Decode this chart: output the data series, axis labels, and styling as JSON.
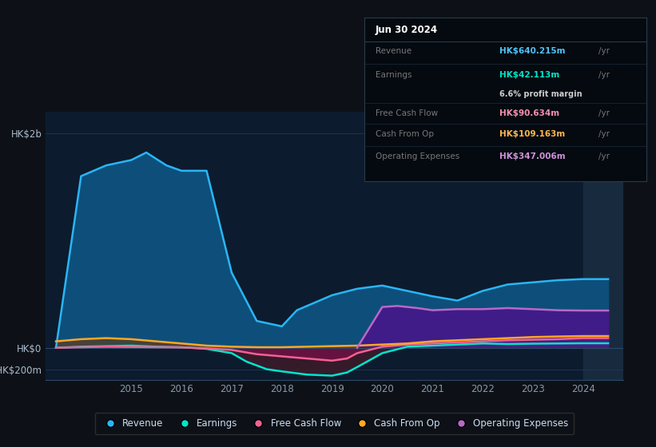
{
  "bg_color": "#0d1117",
  "plot_bg_color": "#0d1b2e",
  "grid_color": "#1e3a5a",
  "ylabel_text": "HK$2b",
  "ylabel_neg": "-HK$200m",
  "ylabel_zero": "HK$0",
  "x_ticks": [
    2015,
    2016,
    2017,
    2018,
    2019,
    2020,
    2021,
    2022,
    2023,
    2024
  ],
  "ylim": [
    -300,
    2200
  ],
  "highlight_x_start": 2024.0,
  "tooltip": {
    "date": "Jun 30 2024",
    "revenue_label": "Revenue",
    "revenue_value": "HK$640.215m",
    "revenue_color": "#4fc3f7",
    "earnings_label": "Earnings",
    "earnings_value": "HK$42.113m",
    "earnings_color": "#00e5cc",
    "profit_margin": "6.6% profit margin",
    "fcf_label": "Free Cash Flow",
    "fcf_value": "HK$90.634m",
    "fcf_color": "#f48fb1",
    "cashop_label": "Cash From Op",
    "cashop_value": "HK$109.163m",
    "cashop_color": "#ffb74d",
    "opex_label": "Operating Expenses",
    "opex_value": "HK$347.006m",
    "opex_color": "#ce93d8"
  },
  "revenue": {
    "color": "#29b6f6",
    "fill_color": "#0d4f7a",
    "x": [
      2013.5,
      2014.0,
      2014.5,
      2015.0,
      2015.3,
      2015.7,
      2016.0,
      2016.5,
      2017.0,
      2017.5,
      2018.0,
      2018.3,
      2018.7,
      2019.0,
      2019.5,
      2020.0,
      2020.5,
      2021.0,
      2021.5,
      2022.0,
      2022.5,
      2023.0,
      2023.5,
      2024.0,
      2024.5
    ],
    "y": [
      0,
      1600,
      1700,
      1750,
      1820,
      1700,
      1650,
      1650,
      700,
      250,
      200,
      350,
      430,
      490,
      550,
      580,
      530,
      480,
      440,
      530,
      590,
      610,
      630,
      640,
      640
    ]
  },
  "earnings": {
    "color": "#00e5cc",
    "fill_color": "#004d40",
    "x": [
      2013.5,
      2014.0,
      2014.5,
      2015.0,
      2015.5,
      2016.0,
      2016.5,
      2017.0,
      2017.3,
      2017.7,
      2018.0,
      2018.5,
      2019.0,
      2019.3,
      2019.5,
      2020.0,
      2020.5,
      2021.0,
      2021.5,
      2022.0,
      2022.5,
      2023.0,
      2023.5,
      2024.0,
      2024.5
    ],
    "y": [
      0,
      10,
      15,
      20,
      10,
      5,
      -10,
      -50,
      -130,
      -200,
      -220,
      -250,
      -260,
      -230,
      -180,
      -50,
      10,
      20,
      30,
      40,
      35,
      38,
      40,
      42,
      42
    ]
  },
  "fcf": {
    "color": "#f06292",
    "fill_color": "#880e4f",
    "x": [
      2013.5,
      2014.0,
      2014.5,
      2015.0,
      2015.5,
      2016.0,
      2016.5,
      2017.0,
      2017.5,
      2018.0,
      2018.5,
      2019.0,
      2019.3,
      2019.5,
      2020.0,
      2020.5,
      2021.0,
      2021.5,
      2022.0,
      2022.5,
      2023.0,
      2023.5,
      2024.0,
      2024.5
    ],
    "y": [
      0,
      5,
      10,
      8,
      5,
      3,
      -5,
      -20,
      -60,
      -80,
      -100,
      -120,
      -100,
      -50,
      10,
      30,
      40,
      50,
      60,
      70,
      75,
      80,
      90,
      90
    ]
  },
  "cashop": {
    "color": "#ffa726",
    "fill_color": "#7a3800",
    "x": [
      2013.5,
      2014.0,
      2014.5,
      2015.0,
      2015.5,
      2016.0,
      2016.5,
      2017.0,
      2017.5,
      2018.0,
      2018.5,
      2019.0,
      2019.5,
      2020.0,
      2020.5,
      2021.0,
      2021.5,
      2022.0,
      2022.5,
      2023.0,
      2023.5,
      2024.0,
      2024.5
    ],
    "y": [
      60,
      80,
      90,
      80,
      60,
      40,
      20,
      10,
      5,
      5,
      10,
      15,
      20,
      30,
      40,
      60,
      70,
      80,
      90,
      100,
      105,
      109,
      109
    ]
  },
  "opex": {
    "color": "#ba68c8",
    "fill_color": "#4a148c",
    "x": [
      2019.5,
      2020.0,
      2020.3,
      2020.7,
      2021.0,
      2021.5,
      2022.0,
      2022.5,
      2023.0,
      2023.5,
      2024.0,
      2024.5
    ],
    "y": [
      0,
      380,
      390,
      370,
      350,
      360,
      360,
      370,
      360,
      350,
      347,
      347
    ]
  },
  "legend": [
    {
      "label": "Revenue",
      "color": "#29b6f6"
    },
    {
      "label": "Earnings",
      "color": "#00e5cc"
    },
    {
      "label": "Free Cash Flow",
      "color": "#f06292"
    },
    {
      "label": "Cash From Op",
      "color": "#ffa726"
    },
    {
      "label": "Operating Expenses",
      "color": "#ba68c8"
    }
  ]
}
